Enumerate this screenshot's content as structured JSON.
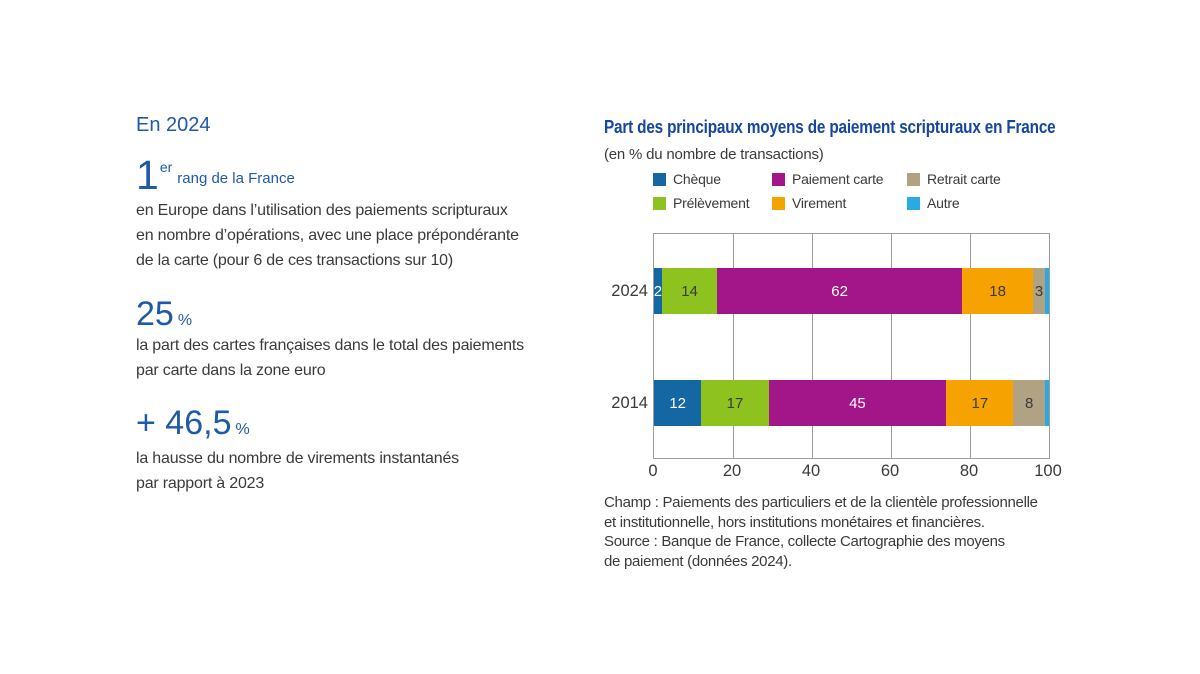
{
  "colors": {
    "title_blue": "#1646A0",
    "stat_blue": "#1E5AA8",
    "text": "#3A3A39",
    "grid": "#9D9D9C"
  },
  "left_panel": {
    "heading": "En 2024",
    "stats": [
      {
        "value": "1",
        "sup": "er",
        "suffix": "rang de la France",
        "lines": [
          "en Europe dans l’utilisation des paiements scripturaux",
          "en nombre d’opérations, avec une place prépondérante",
          "de la carte (pour 6 de ces transactions sur 10)"
        ]
      },
      {
        "value": "25",
        "unit": "%",
        "lines": [
          "la part des cartes françaises dans le total des paiements",
          "par carte dans la zone euro"
        ]
      },
      {
        "value": "+ 46,5",
        "unit": "%",
        "lines": [
          "la hausse du nombre de virements instantanés",
          "par rapport à 2023"
        ]
      }
    ]
  },
  "chart_data": {
    "type": "bar",
    "orientation": "horizontal",
    "stacked": true,
    "title": "Part des principaux moyens de paiement scripturaux en France",
    "subtitle": "(en % du nombre de transactions)",
    "categories": [
      "2024",
      "2014"
    ],
    "series": [
      {
        "name": "Chèque",
        "color": "#1467A2",
        "label_color": "#FFFFFF",
        "values": [
          2,
          12
        ]
      },
      {
        "name": "Prélèvement",
        "color": "#8DC21F",
        "label_color": "#3A3A39",
        "values": [
          14,
          17
        ]
      },
      {
        "name": "Paiement carte",
        "color": "#A31689",
        "label_color": "#FFFFFF",
        "values": [
          62,
          45
        ]
      },
      {
        "name": "Virement",
        "color": "#F6A200",
        "label_color": "#3A3A39",
        "values": [
          18,
          17
        ]
      },
      {
        "name": "Retrait carte",
        "color": "#B2A284",
        "label_color": "#3A3A39",
        "values": [
          3,
          8
        ]
      },
      {
        "name": "Autre",
        "color": "#29ABE2",
        "label_color": "#3A3A39",
        "values": [
          1,
          1
        ]
      }
    ],
    "legend_order": [
      "Chèque",
      "Paiement carte",
      "Retrait carte",
      "Prélèvement",
      "Virement",
      "Autre"
    ],
    "legend_position": "top",
    "xlim": [
      0,
      100
    ],
    "xticks": [
      0,
      20,
      40,
      60,
      80,
      100
    ],
    "grid": true,
    "label_min_value": 2
  },
  "footer": {
    "lines": [
      "Champ : Paiements des particuliers et de la clientèle professionnelle",
      "et institutionnelle, hors institutions monétaires et financières.",
      "Source : Banque de France, collecte Cartographie des moyens",
      "de paiement (données 2024)."
    ]
  }
}
